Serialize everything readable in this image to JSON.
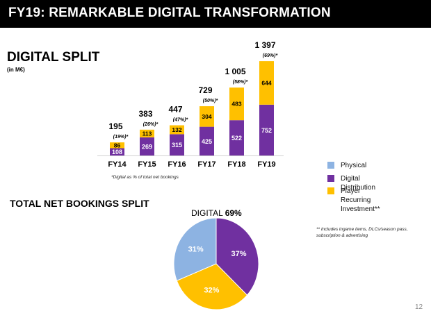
{
  "header": {
    "title": "FY19: REMARKABLE DIGITAL TRANSFORMATION"
  },
  "digital_split": {
    "title": "DIGITAL SPLIT",
    "unit": "(in M€)",
    "footnote": "*Digital as % of total net bookings"
  },
  "bookings": {
    "title": "TOTAL NET BOOKINGS SPLIT"
  },
  "legend": {
    "items": [
      {
        "label": "Physical",
        "color": "#8db3e2"
      },
      {
        "label": "Digital Distribution",
        "color": "#7030a0"
      },
      {
        "label": "Player\nRecurring\nInvestment**",
        "color": "#ffc000"
      }
    ],
    "footnote": "** Includes ingame items, DLCs/season pass,\nsubscription & advertising"
  },
  "page_number": "12",
  "colors": {
    "header_bg": "#000000",
    "physical": "#8db3e2",
    "digital_distribution": "#7030a0",
    "player_recurring": "#ffc000"
  },
  "chart_data": [
    {
      "type": "bar",
      "stacked": true,
      "categories": [
        "FY14",
        "FY15",
        "FY16",
        "FY17",
        "FY18",
        "FY19"
      ],
      "series": [
        {
          "name": "Digital Distribution",
          "values": [
            108,
            269,
            315,
            425,
            522,
            752
          ],
          "color": "#7030a0"
        },
        {
          "name": "Player Recurring Investment**",
          "values": [
            86,
            113,
            132,
            304,
            483,
            644
          ],
          "color": "#ffc000"
        }
      ],
      "totals": [
        "195",
        "383",
        "447",
        "729",
        "1 005",
        "1 397"
      ],
      "percent_labels": [
        "(19%)*",
        "(26%)*",
        "(47%)*",
        "(50%)*",
        "(58%)*",
        "(69%)*"
      ],
      "segment_labels": {
        "bottom": [
          "108",
          "269",
          "315",
          "425",
          "522",
          "752"
        ],
        "top": [
          "86",
          "113",
          "132",
          "304",
          "483",
          "644"
        ]
      },
      "ylim": [
        0,
        1397
      ]
    },
    {
      "type": "pie",
      "title_prefix": "DIGITAL ",
      "title_value": "69%",
      "slices": [
        {
          "label": "Digital Distribution",
          "value": 37,
          "text": "37%",
          "color": "#7030a0"
        },
        {
          "label": "Player Recurring Investment**",
          "value": 32,
          "text": "32%",
          "color": "#ffc000"
        },
        {
          "label": "Physical",
          "value": 31,
          "text": "31%",
          "color": "#8db3e2"
        }
      ]
    }
  ]
}
